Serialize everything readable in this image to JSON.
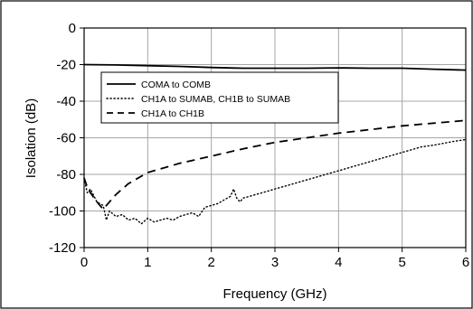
{
  "chart_data": {
    "type": "line",
    "title": "",
    "xlabel": "Frequency (GHz)",
    "ylabel": "Isolation (dB)",
    "xlim": [
      0,
      6
    ],
    "ylim": [
      -120,
      0
    ],
    "x_ticks": [
      0,
      1,
      2,
      3,
      4,
      5,
      6
    ],
    "x_tick_labels": [
      "0",
      "1",
      "2",
      "3",
      "4",
      "5",
      "6"
    ],
    "y_ticks": [
      0,
      -20,
      -40,
      -60,
      -80,
      -100,
      -120
    ],
    "y_tick_labels": [
      "0",
      "-20",
      "-40",
      "-60",
      "-80",
      "-100",
      "-120"
    ],
    "grid": true,
    "legend_position": "upper-left",
    "series": [
      {
        "name": "COMA to COMB",
        "style": "solid",
        "x": [
          0,
          0.5,
          1.0,
          1.5,
          2.0,
          2.5,
          3.0,
          3.5,
          4.0,
          4.5,
          5.0,
          5.5,
          6.0
        ],
        "y": [
          -20,
          -20.2,
          -20.6,
          -21,
          -21.6,
          -22,
          -22,
          -22,
          -21.8,
          -22,
          -22,
          -22.5,
          -23
        ]
      },
      {
        "name": "CH1A to SUMAB, CH1B to SUMAB",
        "style": "dotted",
        "x": [
          0,
          0.05,
          0.1,
          0.2,
          0.3,
          0.35,
          0.4,
          0.5,
          0.6,
          0.7,
          0.8,
          0.9,
          1.0,
          1.1,
          1.2,
          1.3,
          1.4,
          1.5,
          1.6,
          1.7,
          1.8,
          1.9,
          2.0,
          2.1,
          2.2,
          2.3,
          2.35,
          2.4,
          2.45,
          2.5,
          2.6,
          2.8,
          3.0,
          3.2,
          3.5,
          4.0,
          4.5,
          5.0,
          5.3,
          5.5,
          5.8,
          6.0
        ],
        "y": [
          -82,
          -90,
          -88,
          -95,
          -97,
          -105,
          -100,
          -103,
          -102,
          -105,
          -104,
          -107,
          -104,
          -106,
          -105,
          -104,
          -105,
          -103,
          -102,
          -101,
          -103,
          -98,
          -97,
          -96,
          -94,
          -92,
          -88,
          -93,
          -95,
          -93,
          -92,
          -90,
          -88,
          -86,
          -83,
          -78,
          -73,
          -68,
          -65,
          -64,
          -62,
          -61
        ]
      },
      {
        "name": "CH1A to CH1B",
        "style": "dashed",
        "x": [
          0,
          0.05,
          0.1,
          0.2,
          0.3,
          0.4,
          0.5,
          0.6,
          0.7,
          0.8,
          0.9,
          1.0,
          1.2,
          1.5,
          2.0,
          2.5,
          3.0,
          3.5,
          4.0,
          4.5,
          5.0,
          5.5,
          6.0
        ],
        "y": [
          -82,
          -87,
          -90,
          -95,
          -99,
          -95,
          -91,
          -88,
          -85,
          -83,
          -81,
          -79,
          -77,
          -74,
          -70,
          -66,
          -62.5,
          -60,
          -57.5,
          -55.5,
          -53.5,
          -52,
          -50.5
        ]
      }
    ]
  }
}
